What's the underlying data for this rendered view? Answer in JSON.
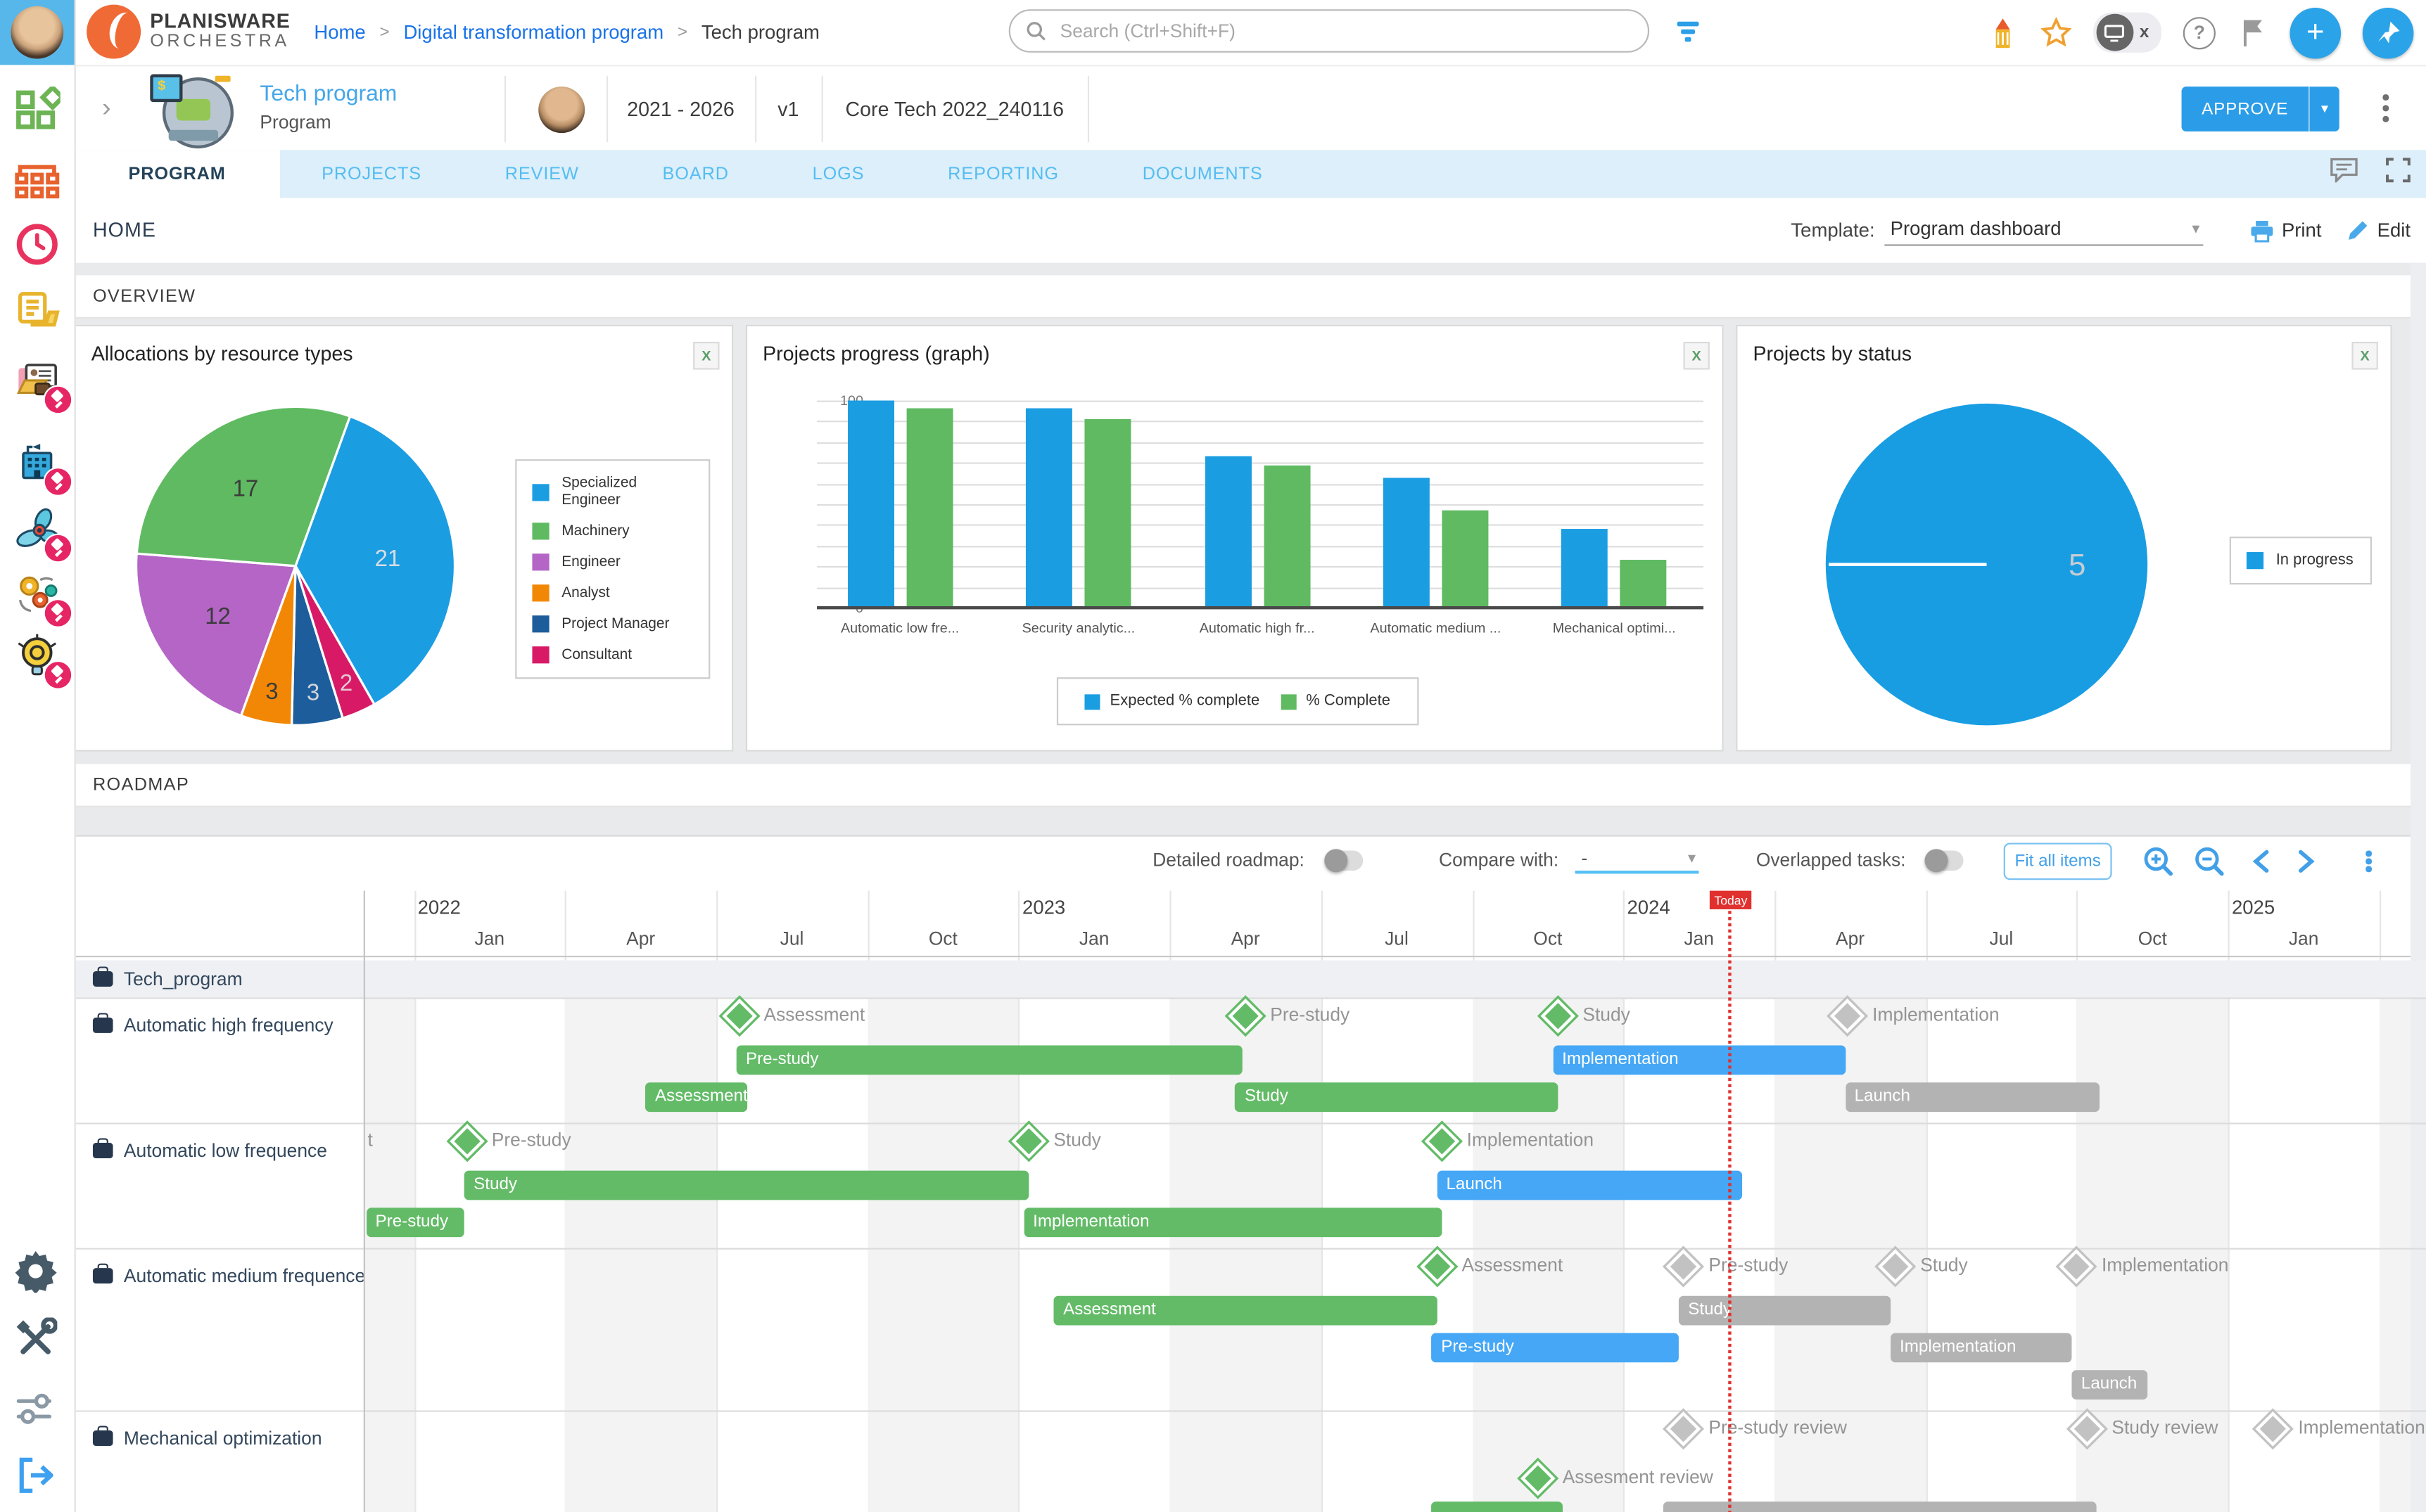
{
  "topbar": {
    "logo_line1": "PLANISWARE",
    "logo_line2": "ORCHESTRA",
    "breadcrumb": [
      "Home",
      "Digital transformation program",
      "Tech program"
    ],
    "search_placeholder": "Search (Ctrl+Shift+F)",
    "icons": [
      "filter-icon",
      "pencil-notification-icon",
      "star-icon",
      "screen-share-stop-icon",
      "help-icon",
      "flag-icon",
      "add-icon",
      "pin-icon"
    ]
  },
  "program_header": {
    "title": "Tech program",
    "type": "Program",
    "dates": "2021 - 2026",
    "version": "v1",
    "code": "Core Tech 2022_240116",
    "approve_label": "APPROVE"
  },
  "tabs": {
    "items": [
      "PROGRAM",
      "PROJECTS",
      "REVIEW",
      "BOARD",
      "LOGS",
      "REPORTING",
      "DOCUMENTS"
    ],
    "active": "PROGRAM"
  },
  "home_bar": {
    "title": "HOME",
    "template_label": "Template:",
    "template_value": "Program dashboard",
    "print_label": "Print",
    "edit_label": "Edit"
  },
  "sections": {
    "overview": "OVERVIEW",
    "roadmap": "ROADMAP"
  },
  "chart_data": [
    {
      "type": "pie",
      "title": "Allocations by resource types",
      "legend_position": "right",
      "start_angle": 20,
      "slices": [
        {
          "name": "Specialized Engineer",
          "value": 21,
          "color": "#1b9de2",
          "text_color": "#d8dde2"
        },
        {
          "name": "Consultant",
          "value": 2,
          "color": "#d81a66",
          "text_color": "#e3c7d4"
        },
        {
          "name": "Project Manager",
          "value": 3,
          "color": "#1d5d9b",
          "text_color": "#cfd6de"
        },
        {
          "name": "Analyst",
          "value": 3,
          "color": "#f28705",
          "text_color": "#3c3c3c"
        },
        {
          "name": "Engineer",
          "value": 12,
          "color": "#b465c6",
          "text_color": "#3c3c3c"
        },
        {
          "name": "Machinery",
          "value": 17,
          "color": "#5fba61",
          "text_color": "#3c3c3c"
        }
      ],
      "legend_order": [
        "Specialized Engineer",
        "Machinery",
        "Engineer",
        "Analyst",
        "Project Manager",
        "Consultant"
      ]
    },
    {
      "type": "bar",
      "title": "Projects progress (graph)",
      "categories": [
        "Automatic low fre...",
        "Security analytic...",
        "Automatic high fr...",
        "Automatic medium ...",
        "Mechanical optimi..."
      ],
      "series": [
        {
          "name": "Expected % complete",
          "color": "#1b9de2",
          "values": [
            100,
            96,
            73,
            63,
            38
          ]
        },
        {
          "name": "% Complete",
          "color": "#5fba61",
          "values": [
            96,
            91,
            69,
            47,
            23
          ]
        }
      ],
      "ylim": [
        0,
        100
      ],
      "ytick_step": 10,
      "grid": true,
      "legend_position": "bottom"
    },
    {
      "type": "pie",
      "title": "Projects by status",
      "slices": [
        {
          "name": "In progress",
          "value": 5,
          "color": "#189de3"
        }
      ],
      "value_label": "5",
      "legend_position": "right"
    }
  ],
  "roadmap": {
    "controls": {
      "detailed_label": "Detailed roadmap:",
      "compare_label": "Compare with:",
      "compare_value": "-",
      "overlapped_label": "Overlapped tasks:",
      "fit_label": "Fit all items",
      "icons": [
        "zoom-in-icon",
        "zoom-out-icon",
        "chevron-left-icon",
        "chevron-right-icon",
        "more-icon"
      ]
    },
    "timeline": {
      "origin_x": 187,
      "month_width": 32.57,
      "years": [
        {
          "label": "2022",
          "m": 1
        },
        {
          "label": "2023",
          "m": 13
        },
        {
          "label": "2024",
          "m": 25
        },
        {
          "label": "2025",
          "m": 37
        }
      ],
      "months": [
        {
          "label": "Jan",
          "m": 1
        },
        {
          "label": "Apr",
          "m": 4
        },
        {
          "label": "Jul",
          "m": 7
        },
        {
          "label": "Oct",
          "m": 10
        },
        {
          "label": "Jan",
          "m": 13
        },
        {
          "label": "Apr",
          "m": 16
        },
        {
          "label": "Jul",
          "m": 19
        },
        {
          "label": "Oct",
          "m": 22
        },
        {
          "label": "Jan",
          "m": 25
        },
        {
          "label": "Apr",
          "m": 28
        },
        {
          "label": "Jul",
          "m": 31
        },
        {
          "label": "Oct",
          "m": 34
        },
        {
          "label": "Jan",
          "m": 37
        }
      ],
      "today_label": "Today",
      "today_m": 27.08
    },
    "colors": {
      "green": "#63bb67",
      "blue": "#45a7f5",
      "gray": "#b3b3b3",
      "ms_gray": "#c2c2c2"
    },
    "rows": [
      {
        "label": "Tech_program",
        "group": true,
        "height": 25,
        "items": []
      },
      {
        "label": "Automatic high frequency",
        "group": false,
        "height": 81,
        "items": [
          {
            "kind": "milestone",
            "label": "Assessment",
            "color": "green",
            "m": 7.45,
            "y": 11
          },
          {
            "kind": "milestone",
            "label": "Pre-study",
            "color": "green",
            "m": 17.5,
            "y": 11
          },
          {
            "kind": "milestone",
            "label": "Study",
            "color": "green",
            "m": 23.7,
            "y": 11
          },
          {
            "kind": "milestone",
            "label": "Implementation",
            "color": "ms_gray",
            "m": 29.45,
            "y": 11
          },
          {
            "kind": "bar",
            "label": "Pre-study",
            "color": "green",
            "m0": 7.4,
            "m1": 17.45,
            "y": 30
          },
          {
            "kind": "bar",
            "label": "Implementation",
            "color": "blue",
            "m0": 23.6,
            "m1": 29.4,
            "y": 30
          },
          {
            "kind": "bar",
            "label": "Assessment",
            "color": "green",
            "m0": 5.6,
            "m1": 7.6,
            "y": 54
          },
          {
            "kind": "bar",
            "label": "Study",
            "color": "green",
            "m0": 17.3,
            "m1": 23.7,
            "y": 54
          },
          {
            "kind": "bar",
            "label": "Launch",
            "color": "gray",
            "m0": 29.4,
            "m1": 34.45,
            "y": 54
          }
        ]
      },
      {
        "label": "Automatic low frequence",
        "group": false,
        "height": 81,
        "items": [
          {
            "kind": "text",
            "label": "t",
            "m": 0.08,
            "y": 11
          },
          {
            "kind": "milestone",
            "label": "Pre-study",
            "color": "green",
            "m": 2.05,
            "y": 11
          },
          {
            "kind": "milestone",
            "label": "Study",
            "color": "green",
            "m": 13.2,
            "y": 11
          },
          {
            "kind": "milestone",
            "label": "Implementation",
            "color": "green",
            "m": 21.4,
            "y": 11
          },
          {
            "kind": "bar",
            "label": "Study",
            "color": "green",
            "m0": 2.0,
            "m1": 13.2,
            "y": 30
          },
          {
            "kind": "bar",
            "label": "Launch",
            "color": "blue",
            "m0": 21.3,
            "m1": 27.35,
            "y": 30
          },
          {
            "kind": "bar",
            "label": "Pre-study",
            "color": "green",
            "m0": 0.05,
            "m1": 2.0,
            "y": 54
          },
          {
            "kind": "bar",
            "label": "Implementation",
            "color": "green",
            "m0": 13.1,
            "m1": 21.4,
            "y": 54
          }
        ]
      },
      {
        "label": "Automatic medium frequence",
        "group": false,
        "height": 105,
        "items": [
          {
            "kind": "milestone",
            "label": "Assessment",
            "color": "green",
            "m": 21.3,
            "y": 11
          },
          {
            "kind": "milestone",
            "label": "Pre-study",
            "color": "ms_gray",
            "m": 26.2,
            "y": 11
          },
          {
            "kind": "milestone",
            "label": "Study",
            "color": "ms_gray",
            "m": 30.4,
            "y": 11
          },
          {
            "kind": "milestone",
            "label": "Implementation",
            "color": "ms_gray",
            "m": 34.0,
            "y": 11
          },
          {
            "kind": "bar",
            "label": "Assessment",
            "color": "green",
            "m0": 13.7,
            "m1": 21.3,
            "y": 30
          },
          {
            "kind": "bar",
            "label": "Study",
            "color": "gray",
            "m0": 26.1,
            "m1": 30.3,
            "y": 30
          },
          {
            "kind": "bar",
            "label": "Pre-study",
            "color": "blue",
            "m0": 21.2,
            "m1": 26.1,
            "y": 54
          },
          {
            "kind": "bar",
            "label": "Implementation",
            "color": "gray",
            "m0": 30.3,
            "m1": 33.9,
            "y": 54
          },
          {
            "kind": "bar",
            "label": "Launch",
            "color": "gray",
            "m0": 33.9,
            "m1": 35.4,
            "y": 78
          }
        ]
      },
      {
        "label": "Mechanical optimization",
        "group": false,
        "height": 70,
        "items": [
          {
            "kind": "milestone",
            "label": "Pre-study review",
            "color": "ms_gray",
            "m": 26.2,
            "y": 11
          },
          {
            "kind": "milestone",
            "label": "Study review",
            "color": "ms_gray",
            "m": 34.2,
            "y": 11
          },
          {
            "kind": "milestone",
            "label": "Implementation",
            "color": "ms_gray",
            "m": 37.9,
            "y": 11
          },
          {
            "kind": "milestone",
            "label": "Assesment review",
            "color": "green",
            "m": 23.3,
            "y": 43
          },
          {
            "kind": "bar",
            "label": "",
            "color": "green",
            "m0": 21.2,
            "m1": 23.8,
            "y": 58
          },
          {
            "kind": "bar",
            "label": "",
            "color": "gray",
            "m0": 25.8,
            "m1": 34.4,
            "y": 58
          }
        ]
      }
    ]
  },
  "sidebar_icons": [
    "dashboard-icon",
    "portfolio-icon",
    "time-icon",
    "documents-icon",
    "resources-icon",
    "organization-icon",
    "operations-icon",
    "process-icon",
    "ideas-icon",
    "settings-icon",
    "tools-icon",
    "preferences-icon",
    "logout-icon"
  ]
}
